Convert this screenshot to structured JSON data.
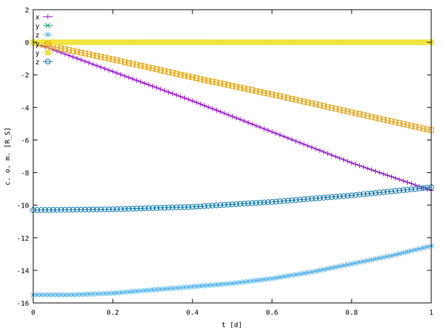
{
  "chart_data": {
    "type": "line",
    "xlabel": "t [d]",
    "ylabel": "c. o. m. [R_S]",
    "xlim": [
      0,
      1
    ],
    "ylim": [
      -16,
      2
    ],
    "x_ticks": [
      0,
      0.2,
      0.4,
      0.6,
      0.8,
      1
    ],
    "x_tick_labels": [
      "0",
      "0.2",
      "0.4",
      "0.6",
      "0.8",
      "1"
    ],
    "y_ticks": [
      -16,
      -14,
      -12,
      -10,
      -8,
      -6,
      -4,
      -2,
      0,
      2
    ],
    "y_tick_labels": [
      "-16",
      "-14",
      "-12",
      "-10",
      "-8",
      "-6",
      "-4",
      "-2",
      "0",
      "2"
    ],
    "grid": false,
    "legend_position": "top-left",
    "series": [
      {
        "name": "x",
        "color": "#9400d3",
        "marker": "plus",
        "points": [
          [
            0,
            0
          ],
          [
            0.2,
            -1.8
          ],
          [
            0.4,
            -3.6
          ],
          [
            0.6,
            -5.5
          ],
          [
            0.8,
            -7.4
          ],
          [
            1,
            -9.1
          ]
        ]
      },
      {
        "name": "y",
        "color": "#009e73",
        "marker": "x",
        "points": [
          [
            0,
            0
          ],
          [
            1,
            0
          ]
        ]
      },
      {
        "name": "z",
        "color": "#56b4e9",
        "marker": "star",
        "points": [
          [
            0,
            -15.5
          ],
          [
            0.1,
            -15.5
          ],
          [
            0.2,
            -15.4
          ],
          [
            0.3,
            -15.2
          ],
          [
            0.4,
            -15.0
          ],
          [
            0.5,
            -14.8
          ],
          [
            0.6,
            -14.5
          ],
          [
            0.7,
            -14.1
          ],
          [
            0.8,
            -13.6
          ],
          [
            0.9,
            -13.1
          ],
          [
            1,
            -12.5
          ]
        ]
      },
      {
        "name": "y",
        "color": "#e69f00",
        "marker": "box",
        "points": [
          [
            0,
            0
          ],
          [
            0.2,
            -1.05
          ],
          [
            0.4,
            -2.15
          ],
          [
            0.6,
            -3.2
          ],
          [
            0.8,
            -4.3
          ],
          [
            1,
            -5.4
          ]
        ]
      },
      {
        "name": "y",
        "color": "#f0e442",
        "marker": "filled-box",
        "points": [
          [
            0,
            0
          ],
          [
            1,
            0
          ]
        ]
      },
      {
        "name": "z",
        "color": "#0072b2",
        "marker": "circle",
        "points": [
          [
            0,
            -10.3
          ],
          [
            0.2,
            -10.25
          ],
          [
            0.4,
            -10.1
          ],
          [
            0.6,
            -9.8
          ],
          [
            0.8,
            -9.4
          ],
          [
            1,
            -8.9
          ]
        ]
      }
    ]
  }
}
